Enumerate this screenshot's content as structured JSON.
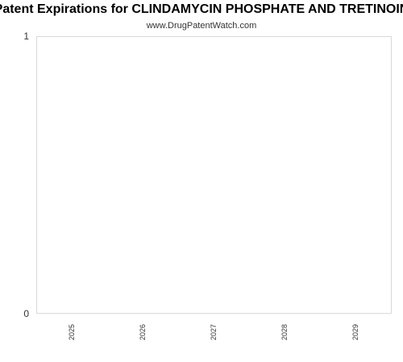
{
  "page": {
    "title": "Patent Expirations for CLINDAMYCIN PHOSPHATE AND TRETINOIN",
    "subtitle": "www.DrugPatentWatch.com"
  },
  "chart_data": {
    "type": "bar",
    "title": "Patent Expirations for CLINDAMYCIN PHOSPHATE AND TRETINOIN",
    "subtitle": "www.DrugPatentWatch.com",
    "xlabel": "",
    "ylabel": "",
    "categories": [
      "2025",
      "2026",
      "2027",
      "2028",
      "2029"
    ],
    "values": [
      0,
      0,
      0,
      0,
      0
    ],
    "ylim": [
      0,
      1
    ],
    "yticks": [
      "0",
      "1"
    ],
    "grid": false,
    "legend": "none",
    "colors": {
      "frame": "#d9d9d9",
      "text": "#333333",
      "bar": "#4a7ebb"
    }
  }
}
